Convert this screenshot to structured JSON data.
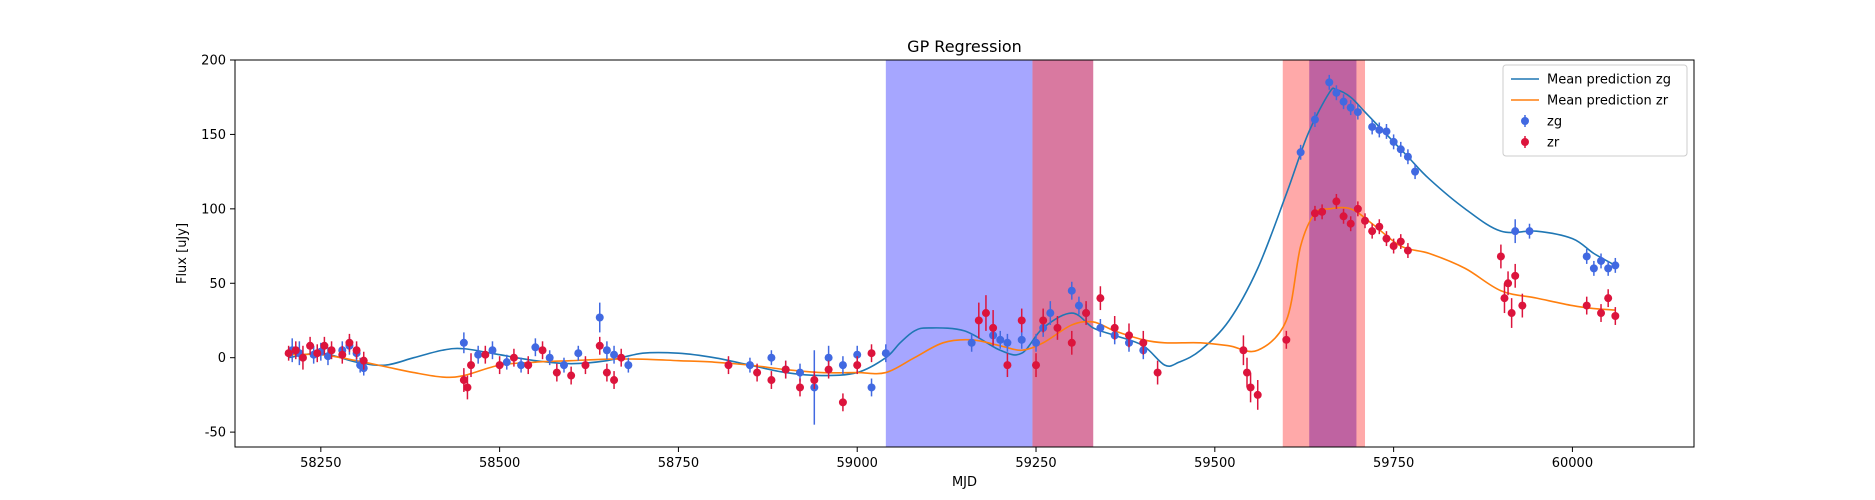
{
  "chart_data": {
    "type": "line",
    "title": "GP Regression",
    "xlabel": "MJD",
    "ylabel": "Flux [uJy]",
    "xlim": [
      58130,
      60170
    ],
    "ylim": [
      -60,
      200
    ],
    "xticks": [
      58250,
      58500,
      58750,
      59000,
      59250,
      59500,
      59750,
      60000
    ],
    "yticks": [
      -50,
      0,
      50,
      100,
      150,
      200
    ],
    "grid": false,
    "legend_position": "top-right",
    "shaded_regions": [
      {
        "x0": 59040,
        "x1": 59245,
        "color": "#0000ff",
        "opacity": 0.35
      },
      {
        "x0": 59245,
        "x1": 59330,
        "color": "#c02060",
        "opacity": 0.6
      },
      {
        "x0": 59595,
        "x1": 59710,
        "color": "#ff4040",
        "opacity": 0.45
      },
      {
        "x0": 59632,
        "x1": 59698,
        "color": "#8a2a9a",
        "opacity": 0.55
      }
    ],
    "series": [
      {
        "name": "Mean prediction zg",
        "kind": "line",
        "color": "#1f77b4",
        "x": [
          58205,
          58250,
          58300,
          58340,
          58380,
          58420,
          58450,
          58500,
          58550,
          58600,
          58650,
          58700,
          58750,
          58800,
          58850,
          58900,
          58950,
          59000,
          59040,
          59060,
          59080,
          59100,
          59150,
          59200,
          59230,
          59260,
          59300,
          59330,
          59360,
          59400,
          59430,
          59450,
          59480,
          59520,
          59560,
          59600,
          59630,
          59660,
          59670,
          59690,
          59710,
          59740,
          59770,
          59800,
          59850,
          59900,
          59950,
          60000,
          60030,
          60060
        ],
        "values": [
          0,
          3,
          -3,
          -5,
          0,
          5,
          6,
          2,
          -2,
          -4,
          -2,
          3,
          3,
          0,
          -5,
          -10,
          -12,
          -10,
          0,
          10,
          18,
          20,
          18,
          5,
          3,
          20,
          30,
          20,
          15,
          8,
          -5,
          -3,
          5,
          25,
          60,
          110,
          150,
          178,
          180,
          175,
          165,
          150,
          135,
          120,
          100,
          85,
          85,
          80,
          70,
          62
        ]
      },
      {
        "name": "Mean prediction zr",
        "kind": "line",
        "color": "#ff7f0e",
        "x": [
          58205,
          58250,
          58300,
          58340,
          58380,
          58420,
          58450,
          58500,
          58550,
          58600,
          58650,
          58700,
          58750,
          58800,
          58850,
          58900,
          58950,
          59000,
          59040,
          59080,
          59120,
          59160,
          59200,
          59230,
          59260,
          59300,
          59330,
          59360,
          59400,
          59430,
          59480,
          59520,
          59560,
          59600,
          59620,
          59640,
          59660,
          59690,
          59720,
          59760,
          59800,
          59850,
          59900,
          59950,
          60000,
          60030,
          60060
        ],
        "values": [
          2,
          2,
          -2,
          -6,
          -10,
          -13,
          -12,
          -5,
          -3,
          -2,
          -1,
          -1,
          -2,
          -3,
          -5,
          -8,
          -10,
          -10,
          -10,
          0,
          10,
          12,
          8,
          5,
          10,
          22,
          24,
          18,
          12,
          10,
          10,
          8,
          5,
          25,
          75,
          97,
          100,
          100,
          90,
          75,
          70,
          60,
          45,
          40,
          35,
          33,
          32
        ]
      },
      {
        "name": "zg",
        "kind": "scatter",
        "color": "#4169e1",
        "x": [
          58210,
          58220,
          58240,
          58250,
          58260,
          58280,
          58290,
          58300,
          58305,
          58310,
          58450,
          58470,
          58490,
          58510,
          58530,
          58550,
          58570,
          58590,
          58610,
          58640,
          58650,
          58660,
          58680,
          58850,
          58880,
          58900,
          58920,
          58940,
          58960,
          58980,
          59000,
          59020,
          59040,
          59160,
          59190,
          59200,
          59210,
          59230,
          59250,
          59260,
          59270,
          59300,
          59310,
          59320,
          59340,
          59360,
          59380,
          59400,
          59620,
          59640,
          59660,
          59670,
          59680,
          59690,
          59700,
          59720,
          59730,
          59740,
          59750,
          59760,
          59770,
          59780,
          59920,
          59940,
          60020,
          60030,
          60040,
          60050,
          60060
        ],
        "values": [
          5,
          3,
          2,
          4,
          1,
          5,
          8,
          3,
          -5,
          -7,
          10,
          2,
          5,
          -3,
          -5,
          7,
          0,
          -5,
          3,
          27,
          5,
          2,
          -5,
          -5,
          0,
          -8,
          -10,
          -20,
          0,
          -5,
          2,
          -20,
          3,
          10,
          15,
          12,
          10,
          12,
          10,
          20,
          30,
          45,
          35,
          30,
          20,
          15,
          10,
          5,
          138,
          160,
          185,
          178,
          172,
          168,
          165,
          155,
          153,
          152,
          145,
          140,
          135,
          125,
          85,
          85,
          68,
          60,
          65,
          60,
          62
        ],
        "errors": [
          8,
          8,
          6,
          6,
          6,
          6,
          6,
          6,
          5,
          5,
          7,
          6,
          6,
          5,
          5,
          6,
          5,
          5,
          5,
          10,
          6,
          6,
          5,
          5,
          5,
          6,
          6,
          25,
          8,
          6,
          6,
          6,
          6,
          6,
          6,
          6,
          6,
          6,
          6,
          6,
          8,
          6,
          6,
          6,
          6,
          6,
          6,
          6,
          5,
          5,
          5,
          5,
          5,
          5,
          5,
          5,
          5,
          5,
          5,
          5,
          5,
          5,
          8,
          5,
          5,
          5,
          5,
          5,
          5
        ]
      },
      {
        "name": "zr",
        "kind": "scatter",
        "color": "#dc143c",
        "x": [
          58205,
          58215,
          58225,
          58235,
          58245,
          58255,
          58265,
          58280,
          58290,
          58300,
          58310,
          58450,
          58455,
          58460,
          58480,
          58500,
          58520,
          58540,
          58560,
          58580,
          58600,
          58620,
          58640,
          58650,
          58660,
          58670,
          58820,
          58860,
          58880,
          58900,
          58920,
          58940,
          58960,
          58980,
          59000,
          59020,
          59170,
          59180,
          59190,
          59210,
          59230,
          59250,
          59260,
          59280,
          59300,
          59320,
          59340,
          59360,
          59380,
          59400,
          59420,
          59540,
          59545,
          59550,
          59560,
          59600,
          59640,
          59650,
          59670,
          59680,
          59690,
          59700,
          59710,
          59720,
          59730,
          59740,
          59750,
          59760,
          59770,
          59900,
          59905,
          59910,
          59915,
          59920,
          59930,
          60020,
          60040,
          60050,
          60060
        ],
        "values": [
          3,
          5,
          0,
          8,
          3,
          8,
          5,
          2,
          10,
          5,
          -2,
          -15,
          -20,
          -5,
          2,
          -5,
          0,
          -5,
          5,
          -10,
          -12,
          -5,
          8,
          -10,
          -15,
          0,
          -5,
          -10,
          -15,
          -8,
          -20,
          -15,
          -8,
          -30,
          -5,
          3,
          25,
          30,
          20,
          -5,
          25,
          -5,
          25,
          20,
          10,
          30,
          40,
          20,
          15,
          10,
          -10,
          5,
          -10,
          -20,
          -25,
          12,
          97,
          98,
          105,
          95,
          90,
          100,
          92,
          85,
          88,
          80,
          75,
          78,
          72,
          68,
          40,
          50,
          30,
          55,
          35,
          35,
          30,
          40,
          28
        ],
        "errors": [
          5,
          6,
          8,
          6,
          6,
          6,
          6,
          6,
          6,
          6,
          6,
          8,
          8,
          8,
          6,
          6,
          6,
          6,
          6,
          6,
          6,
          6,
          6,
          6,
          6,
          6,
          6,
          6,
          6,
          6,
          6,
          6,
          6,
          6,
          6,
          6,
          12,
          12,
          12,
          8,
          8,
          8,
          8,
          8,
          8,
          8,
          8,
          8,
          8,
          8,
          8,
          10,
          10,
          10,
          10,
          6,
          5,
          5,
          5,
          5,
          5,
          5,
          5,
          5,
          5,
          5,
          5,
          5,
          5,
          8,
          10,
          8,
          10,
          8,
          8,
          6,
          6,
          6,
          6
        ]
      }
    ]
  }
}
